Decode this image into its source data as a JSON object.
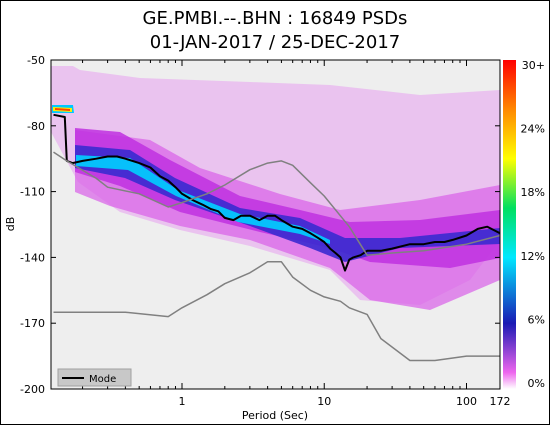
{
  "chart_data": {
    "type": "heatmap",
    "title": "GE.PMBI.--.BHN : 16849 PSDs",
    "subtitle": "01-JAN-2017 / 25-DEC-2017",
    "xlabel": "Period (Sec)",
    "ylabel": "dB",
    "x_scale": "log",
    "xlim": [
      0.12,
      172
    ],
    "ylim": [
      -200,
      -50
    ],
    "x_ticks": [
      {
        "value": 1,
        "label": "1"
      },
      {
        "value": 10,
        "label": "10"
      },
      {
        "value": 100,
        "label": "100"
      },
      {
        "value": 172,
        "label": "172"
      }
    ],
    "y_ticks": [
      -50,
      -80,
      -110,
      -140,
      -170,
      -200
    ],
    "colorbar": {
      "ticks": [
        "0%",
        "6%",
        "12%",
        "18%",
        "24%",
        "30+"
      ],
      "colors": [
        "#ffffff",
        "#ee66ee",
        "#1a1ab4",
        "#00e8ff",
        "#00e060",
        "#ffff00",
        "#ff8800",
        "#ff0000"
      ]
    },
    "legend": {
      "placement": "bottom-left",
      "entries": [
        "Mode"
      ]
    },
    "series": [
      {
        "name": "Mode",
        "x": [
          0.125,
          0.15,
          0.155,
          0.17,
          0.2,
          0.25,
          0.3,
          0.35,
          0.4,
          0.5,
          0.6,
          0.7,
          0.8,
          0.9,
          1.0,
          1.2,
          1.4,
          1.6,
          1.8,
          2.0,
          2.3,
          2.6,
          3.0,
          3.5,
          4.0,
          4.5,
          5.0,
          6.0,
          7.0,
          8.0,
          9.0,
          10,
          11,
          12,
          13,
          14,
          15,
          16,
          18,
          20,
          25,
          30,
          40,
          50,
          60,
          70,
          80,
          100,
          120,
          140,
          172
        ],
        "values": [
          -75,
          -76,
          -96,
          -97,
          -96,
          -95,
          -94,
          -94,
          -95,
          -97,
          -99,
          -103,
          -105,
          -108,
          -111,
          -114,
          -116,
          -118,
          -119,
          -122,
          -123,
          -121,
          -121,
          -123,
          -121,
          -121,
          -123,
          -126,
          -127,
          -129,
          -131,
          -133,
          -136,
          -138,
          -140,
          -146,
          -141,
          -140,
          -139,
          -137,
          -137,
          -136,
          -134,
          -134,
          -133,
          -133,
          -132,
          -130,
          -127,
          -126,
          -129
        ]
      },
      {
        "name": "",
        "color": "#808080",
        "x": [
          0.125,
          0.155,
          0.25,
          0.3,
          0.5,
          0.8,
          1.0,
          1.5,
          2.0,
          3.0,
          4.0,
          5.0,
          6.0,
          8.0,
          10,
          15,
          20,
          30,
          50,
          100,
          172
        ],
        "values": [
          -92,
          -96,
          -104,
          -108,
          -111,
          -117,
          -115,
          -111,
          -107,
          -100,
          -97,
          -96,
          -98,
          -106,
          -112,
          -126,
          -139,
          -138,
          -137,
          -134,
          -130
        ]
      },
      {
        "name": "",
        "color": "#808080",
        "x": [
          0.125,
          0.2,
          0.4,
          0.8,
          1.0,
          1.5,
          2.0,
          3.0,
          4.0,
          5.0,
          6.0,
          8.0,
          10,
          13,
          15,
          20,
          25,
          40,
          60,
          100,
          172
        ],
        "values": [
          -165,
          -165,
          -165,
          -167,
          -163,
          -157,
          -152,
          -147,
          -142,
          -142,
          -149,
          -155,
          -158,
          -160,
          -163,
          -166,
          -177,
          -187,
          -187,
          -185,
          -185
        ]
      }
    ]
  }
}
